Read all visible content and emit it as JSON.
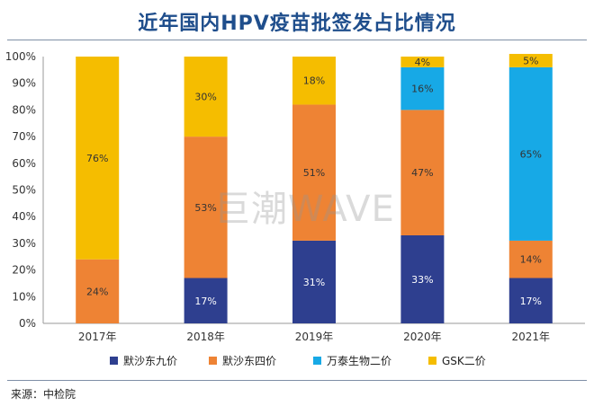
{
  "title": "近年国内HPV疫苗批签发占比情况",
  "watermark": "巨潮WAVE",
  "source": "来源：中检院",
  "chart_data": {
    "type": "bar",
    "stacked": true,
    "categories": [
      "2017年",
      "2018年",
      "2019年",
      "2020年",
      "2021年"
    ],
    "series": [
      {
        "name": "默沙东九价",
        "color": "#2e3f8f",
        "values": [
          0,
          17,
          31,
          33,
          17
        ]
      },
      {
        "name": "默沙东四价",
        "color": "#ee8334",
        "values": [
          24,
          53,
          51,
          47,
          14
        ]
      },
      {
        "name": "万泰生物二价",
        "color": "#17a9e6",
        "values": [
          0,
          0,
          0,
          16,
          65
        ]
      },
      {
        "name": "GSK二价",
        "color": "#f5bd00",
        "values": [
          76,
          30,
          18,
          4,
          5
        ]
      }
    ],
    "y_ticks": [
      "0%",
      "10%",
      "20%",
      "30%",
      "40%",
      "50%",
      "60%",
      "70%",
      "80%",
      "90%",
      "100%"
    ],
    "ylim": [
      0,
      100
    ],
    "grid": false,
    "legend": "bottom"
  }
}
